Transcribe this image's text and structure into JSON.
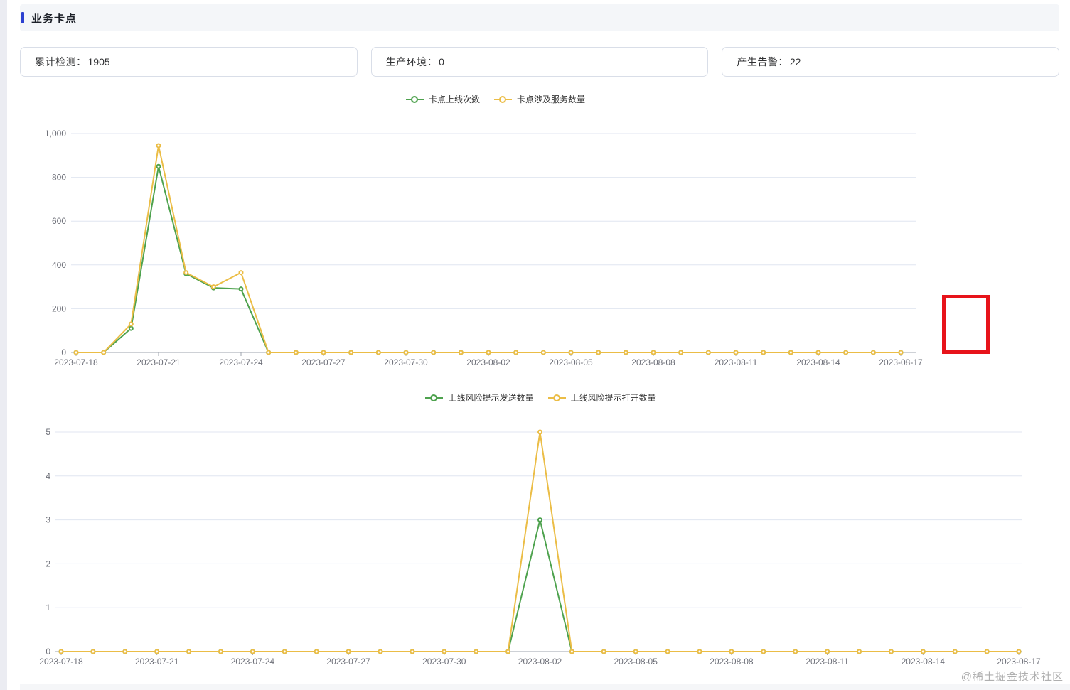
{
  "page": {
    "title_bar": {
      "title": "业务卡点"
    }
  },
  "stats": [
    {
      "label": "累计检测：",
      "value": "1905"
    },
    {
      "label": "生产环境：",
      "value": "0"
    },
    {
      "label": "产生告警：",
      "value": "22"
    }
  ],
  "colors": {
    "accent_blue": "#2C40D0",
    "series_green": "#4EA24E",
    "series_yellow": "#EBBD46",
    "annotation_red": "#E7131A",
    "axis_label": "#6E7079",
    "grid_line": "#E0E6F1",
    "axis_line": "#9DA3AC"
  },
  "watermark": "@稀土掘金技术社区",
  "chart_data": [
    {
      "type": "line",
      "title": "",
      "categories": [
        "2023-07-18",
        "2023-07-19",
        "2023-07-20",
        "2023-07-21",
        "2023-07-22",
        "2023-07-23",
        "2023-07-24",
        "2023-07-25",
        "2023-07-26",
        "2023-07-27",
        "2023-07-28",
        "2023-07-29",
        "2023-07-30",
        "2023-07-31",
        "2023-08-01",
        "2023-08-02",
        "2023-08-03",
        "2023-08-04",
        "2023-08-05",
        "2023-08-06",
        "2023-08-07",
        "2023-08-08",
        "2023-08-09",
        "2023-08-10",
        "2023-08-11",
        "2023-08-12",
        "2023-08-13",
        "2023-08-14",
        "2023-08-15",
        "2023-08-16",
        "2023-08-17"
      ],
      "series": [
        {
          "name": "卡点上线次数",
          "color_key": "series_green",
          "values": [
            0,
            0,
            110,
            850,
            360,
            295,
            290,
            0,
            0,
            0,
            0,
            0,
            0,
            0,
            0,
            0,
            0,
            0,
            0,
            0,
            0,
            0,
            0,
            0,
            0,
            0,
            0,
            0,
            0,
            0,
            0
          ]
        },
        {
          "name": "卡点涉及服务数量",
          "color_key": "series_yellow",
          "values": [
            0,
            0,
            130,
            945,
            365,
            300,
            365,
            0,
            0,
            0,
            0,
            0,
            0,
            0,
            0,
            0,
            0,
            0,
            0,
            0,
            0,
            0,
            0,
            0,
            0,
            0,
            0,
            0,
            0,
            0,
            0
          ]
        }
      ],
      "ylim": [
        0,
        1000
      ],
      "yticks": [
        0,
        200,
        400,
        600,
        800,
        1000
      ],
      "ytick_labels": [
        "0",
        "200",
        "400",
        "600",
        "800",
        "1,000"
      ],
      "x_label_every": 3,
      "grid": true,
      "legend_position": "top",
      "xlabel": "",
      "ylabel": ""
    },
    {
      "type": "line",
      "title": "",
      "categories": [
        "2023-07-18",
        "2023-07-19",
        "2023-07-20",
        "2023-07-21",
        "2023-07-22",
        "2023-07-23",
        "2023-07-24",
        "2023-07-25",
        "2023-07-26",
        "2023-07-27",
        "2023-07-28",
        "2023-07-29",
        "2023-07-30",
        "2023-07-31",
        "2023-08-01",
        "2023-08-02",
        "2023-08-03",
        "2023-08-04",
        "2023-08-05",
        "2023-08-06",
        "2023-08-07",
        "2023-08-08",
        "2023-08-09",
        "2023-08-10",
        "2023-08-11",
        "2023-08-12",
        "2023-08-13",
        "2023-08-14",
        "2023-08-15",
        "2023-08-16",
        "2023-08-17"
      ],
      "series": [
        {
          "name": "上线风险提示发送数量",
          "color_key": "series_green",
          "values": [
            0,
            0,
            0,
            0,
            0,
            0,
            0,
            0,
            0,
            0,
            0,
            0,
            0,
            0,
            0,
            3,
            0,
            0,
            0,
            0,
            0,
            0,
            0,
            0,
            0,
            0,
            0,
            0,
            0,
            0,
            0
          ]
        },
        {
          "name": "上线风险提示打开数量",
          "color_key": "series_yellow",
          "values": [
            0,
            0,
            0,
            0,
            0,
            0,
            0,
            0,
            0,
            0,
            0,
            0,
            0,
            0,
            0,
            5,
            0,
            0,
            0,
            0,
            0,
            0,
            0,
            0,
            0,
            0,
            0,
            0,
            0,
            0,
            0
          ]
        }
      ],
      "ylim": [
        0,
        5
      ],
      "yticks": [
        0,
        1,
        2,
        3,
        4,
        5
      ],
      "ytick_labels": [
        "0",
        "1",
        "2",
        "3",
        "4",
        "5"
      ],
      "x_label_every": 3,
      "grid": true,
      "legend_position": "top",
      "xlabel": "",
      "ylabel": ""
    }
  ]
}
